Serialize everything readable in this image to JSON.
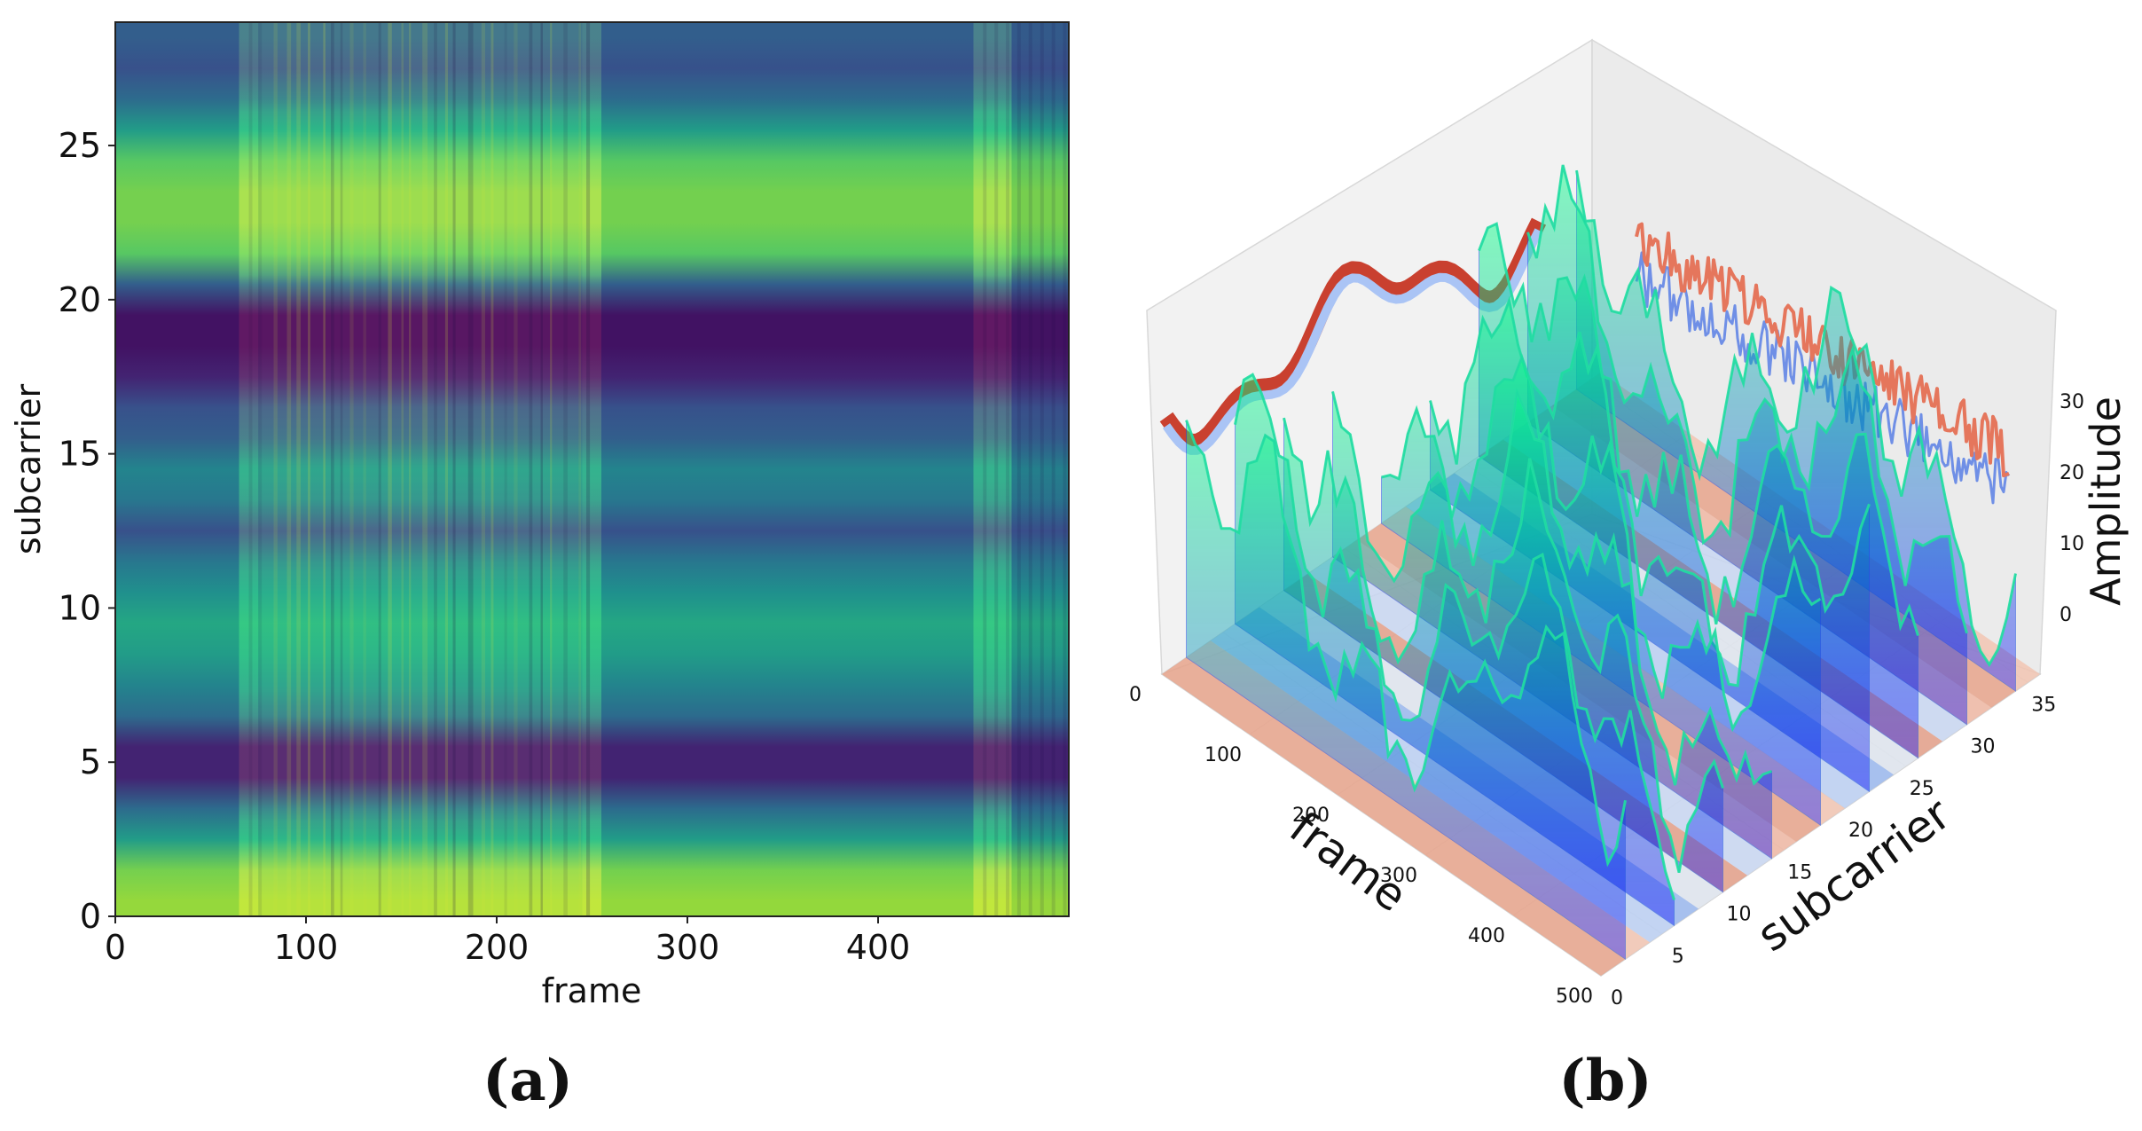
{
  "chart_data": [
    {
      "panel": "a",
      "type": "heatmap",
      "title": "",
      "xlabel": "frame",
      "ylabel": "subcarrier",
      "xlim": [
        0,
        500
      ],
      "ylim": [
        0,
        29
      ],
      "xticks": [
        0,
        100,
        200,
        300,
        400
      ],
      "yticks": [
        0,
        5,
        10,
        15,
        20,
        25
      ],
      "colormap": "viridis",
      "subcarrier_band_levels": [
        0.85,
        0.8,
        0.55,
        0.35,
        0.1,
        0.1,
        0.35,
        0.45,
        0.55,
        0.6,
        0.5,
        0.4,
        0.25,
        0.4,
        0.45,
        0.3,
        0.25,
        0.1,
        0.05,
        0.05,
        0.3,
        0.75,
        0.8,
        0.8,
        0.75,
        0.55,
        0.35,
        0.25,
        0.3
      ],
      "frame_segments": [
        {
          "start": 0,
          "end": 65,
          "gain": 0.75
        },
        {
          "start": 65,
          "end": 75,
          "gain": 1.2
        },
        {
          "start": 75,
          "end": 245,
          "gain": 1.0
        },
        {
          "start": 245,
          "end": 255,
          "gain": 1.2
        },
        {
          "start": 255,
          "end": 450,
          "gain": 0.85
        },
        {
          "start": 450,
          "end": 470,
          "gain": 1.2
        },
        {
          "start": 470,
          "end": 500,
          "gain": 0.6
        }
      ]
    },
    {
      "panel": "b",
      "type": "surface3d",
      "title": "",
      "xlabel": "frame",
      "ylabel": "subcarrier",
      "zlabel": "Amplitude",
      "xticks": [
        0,
        100,
        200,
        300,
        400,
        500
      ],
      "yticks": [
        0,
        5,
        10,
        15,
        20,
        25,
        30,
        35
      ],
      "zticks": [
        0,
        10,
        20,
        30
      ],
      "xlim": [
        0,
        500
      ],
      "ylim": [
        0,
        36
      ],
      "zlim": [
        0,
        35
      ],
      "colormap_surface": "winter",
      "colormap_projections": "coolwarm"
    }
  ],
  "panel_labels": {
    "a": "(a)",
    "b": "(b)"
  }
}
